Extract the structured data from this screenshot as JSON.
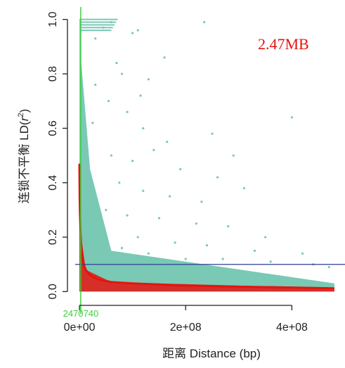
{
  "chart_data": {
    "type": "scatter",
    "title": "",
    "xlabel": "距离 Distance (bp)",
    "ylabel_prefix": "连锁不平衡 LD(",
    "ylabel_var": "r",
    "ylabel_sup": "2",
    "ylabel_suffix": ")",
    "xlim": [
      -8000000,
      500000000
    ],
    "ylim": [
      -0.03,
      1.03
    ],
    "x_ticks": [
      {
        "value": 0,
        "label": "0e+00"
      },
      {
        "value": 200000000,
        "label": "2e+08"
      },
      {
        "value": 400000000,
        "label": "4e+08"
      }
    ],
    "y_ticks": [
      {
        "value": 0.0,
        "label": "0.0"
      },
      {
        "value": 0.2,
        "label": "0.2"
      },
      {
        "value": 0.4,
        "label": "0.4"
      },
      {
        "value": 0.6,
        "label": "0.6"
      },
      {
        "value": 0.8,
        "label": "0.8"
      },
      {
        "value": 1.0,
        "label": "1.0"
      }
    ],
    "threshold_line": {
      "y": 0.1
    },
    "decay_marker": {
      "x": 2470740,
      "label": "2470740"
    },
    "annotation": "2.47MB",
    "decay_curve": {
      "x": [
        0,
        500000,
        1000000,
        2000000,
        3000000,
        5000000,
        8000000,
        12000000,
        20000000,
        35000000,
        60000000,
        100000000,
        200000000,
        300000000,
        400000000,
        480000000
      ],
      "y": [
        0.47,
        0.34,
        0.29,
        0.22,
        0.18,
        0.13,
        0.1,
        0.08,
        0.06,
        0.045,
        0.035,
        0.03,
        0.022,
        0.018,
        0.015,
        0.012
      ]
    },
    "scatter_points": {
      "x": [
        30000000,
        45000000,
        60000000,
        70000000,
        80000000,
        100000000,
        110000000,
        115000000,
        130000000,
        160000000,
        235000000,
        30000000,
        55000000,
        90000000,
        120000000,
        165000000,
        250000000,
        400000000,
        25000000,
        60000000,
        100000000,
        140000000,
        190000000,
        260000000,
        290000000,
        75000000,
        120000000,
        170000000,
        230000000,
        310000000,
        50000000,
        90000000,
        150000000,
        220000000,
        280000000,
        350000000,
        40000000,
        110000000,
        180000000,
        240000000,
        330000000,
        420000000,
        35000000,
        80000000,
        130000000,
        200000000,
        270000000,
        360000000,
        440000000,
        470000000
      ],
      "y": [
        0.93,
        0.97,
        0.99,
        0.84,
        0.8,
        0.95,
        0.96,
        0.72,
        0.78,
        0.86,
        0.99,
        0.76,
        0.7,
        0.66,
        0.6,
        0.55,
        0.58,
        0.64,
        0.62,
        0.5,
        0.48,
        0.52,
        0.45,
        0.42,
        0.5,
        0.4,
        0.37,
        0.35,
        0.33,
        0.38,
        0.3,
        0.28,
        0.27,
        0.25,
        0.24,
        0.2,
        0.22,
        0.2,
        0.18,
        0.17,
        0.15,
        0.14,
        0.18,
        0.16,
        0.14,
        0.12,
        0.12,
        0.11,
        0.1,
        0.09
      ]
    },
    "colors": {
      "scatter": "#79c9b5",
      "curve": "#e5140f",
      "threshold": "#2e3f8f",
      "marker": "#3ecf3e",
      "annotation": "#e5140f",
      "axis": "#222222"
    }
  }
}
